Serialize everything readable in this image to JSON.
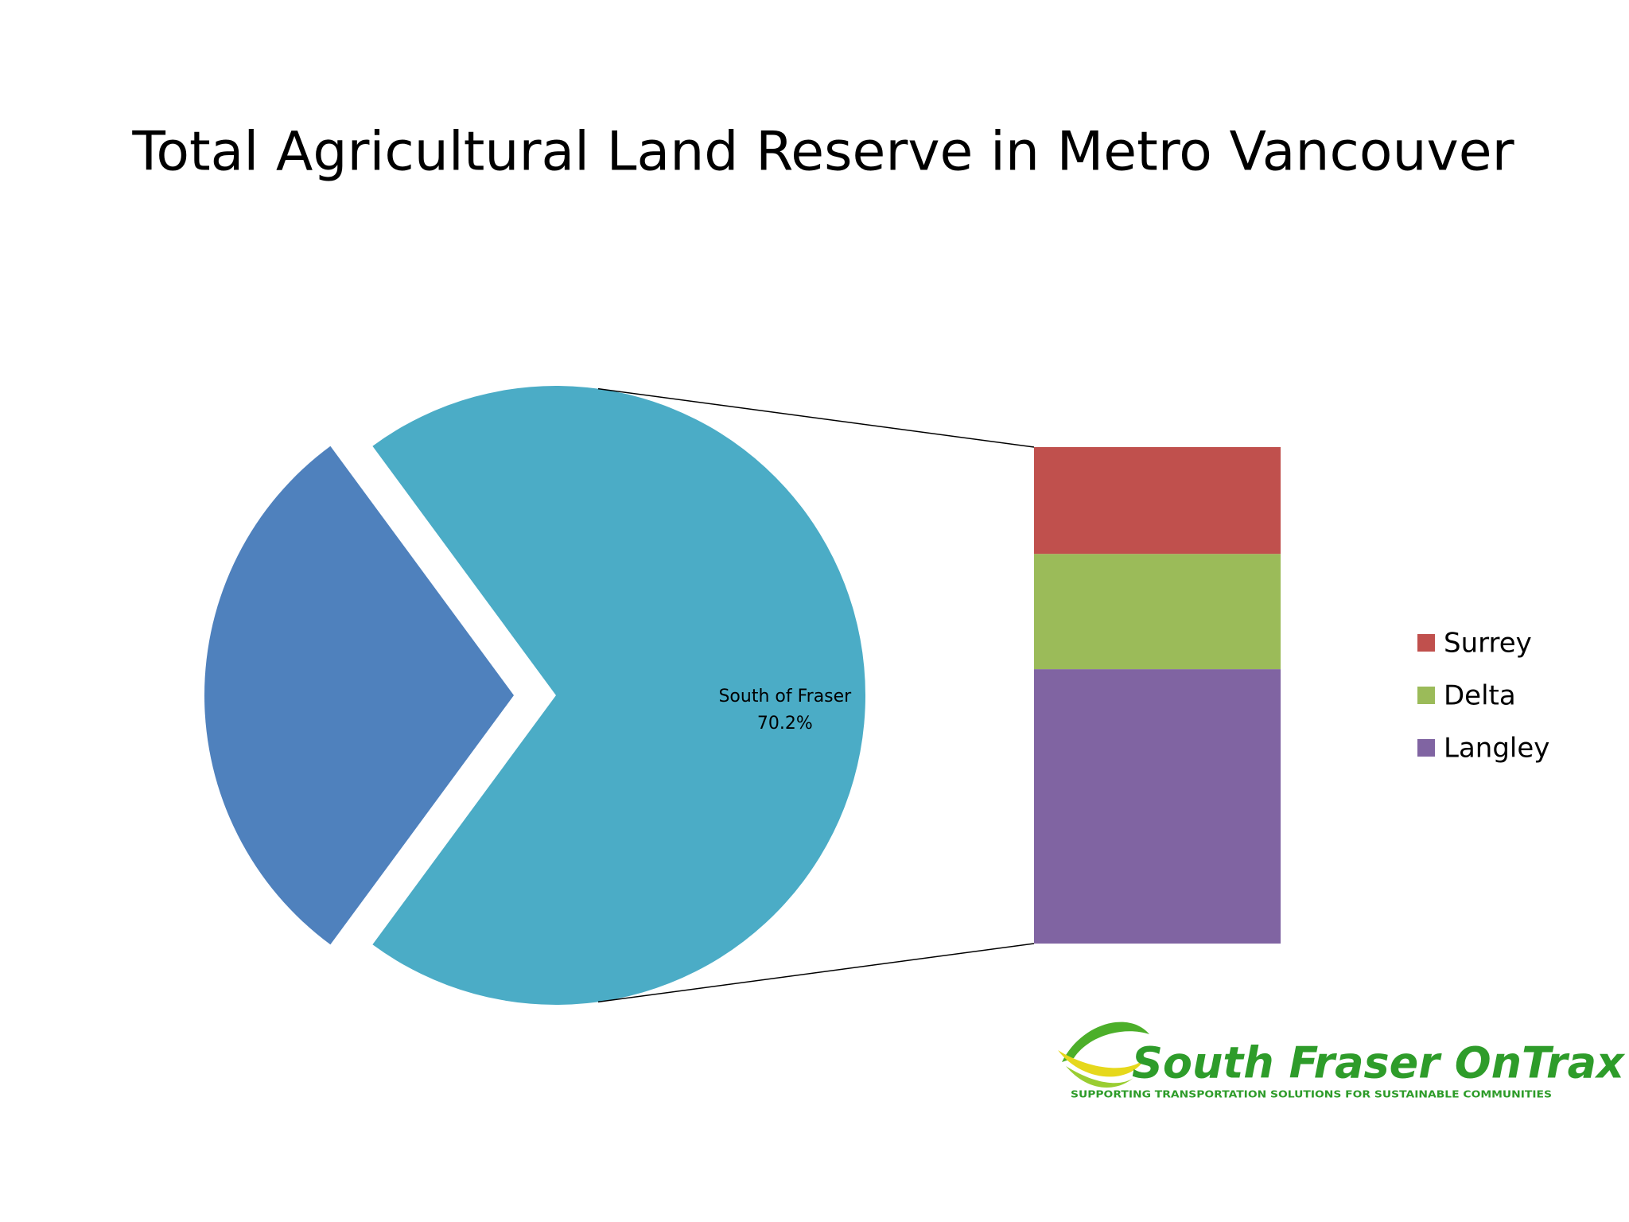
{
  "chart_data": {
    "type": "pie-of-bar",
    "title": "Total Agricultural Land Reserve in Metro Vancouver",
    "categories": [
      null,
      "South of Fraser"
    ],
    "values": [
      29.8,
      70.2
    ],
    "value_labels": [
      null,
      "70.2%"
    ],
    "colors": [
      "#4f81bd",
      "#4bacc6"
    ],
    "breakdown": {
      "categories": [
        "Surrey",
        "Delta",
        "Langley"
      ],
      "values": [
        15.1,
        16.3,
        38.8
      ],
      "colors": [
        "#c0504d",
        "#9bbb59",
        "#8064a2"
      ]
    },
    "legend": "right"
  },
  "logo": {
    "name": "South Fraser OnTrax",
    "tagline": "SUPPORTING TRANSPORTATION SOLUTIONS FOR SUSTAINABLE COMMUNITIES"
  }
}
